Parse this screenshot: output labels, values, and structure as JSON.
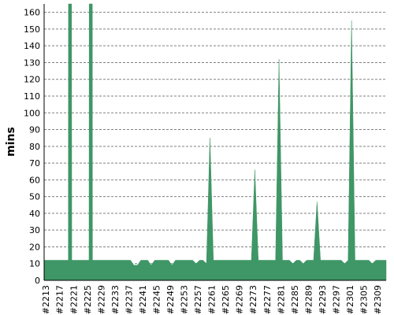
{
  "chart_data": {
    "type": "area",
    "title": "",
    "xlabel": "",
    "ylabel": "mins",
    "ylim": [
      0,
      165
    ],
    "yticks": [
      0,
      10,
      20,
      30,
      40,
      50,
      60,
      70,
      80,
      90,
      100,
      110,
      120,
      130,
      140,
      150,
      160
    ],
    "grid": true,
    "legend": "none",
    "color": "#3f9666",
    "x_labels": [
      "#2213",
      "#2217",
      "#2221",
      "#2225",
      "#2229",
      "#2233",
      "#2237",
      "#2241",
      "#2245",
      "#2249",
      "#2253",
      "#2257",
      "#2261",
      "#2265",
      "#2269",
      "#2273",
      "#2277",
      "#2281",
      "#2285",
      "#2289",
      "#2293",
      "#2297",
      "#2301",
      "#2305",
      "#2309"
    ],
    "x_start": 2213,
    "x_end": 2312,
    "points": [
      [
        2213,
        12
      ],
      [
        2214,
        12
      ],
      [
        2215,
        12
      ],
      [
        2216,
        12
      ],
      [
        2217,
        12
      ],
      [
        2218,
        12
      ],
      [
        2219,
        12
      ],
      [
        2220,
        12
      ],
      [
        2220.05,
        165
      ],
      [
        2220.95,
        165
      ],
      [
        2221,
        12
      ],
      [
        2222,
        12
      ],
      [
        2223,
        12
      ],
      [
        2224,
        12
      ],
      [
        2225,
        12
      ],
      [
        2226,
        12
      ],
      [
        2226.05,
        165
      ],
      [
        2226.95,
        165
      ],
      [
        2227,
        12
      ],
      [
        2228,
        12
      ],
      [
        2229,
        12
      ],
      [
        2230,
        12
      ],
      [
        2231,
        12
      ],
      [
        2232,
        12
      ],
      [
        2233,
        12
      ],
      [
        2234,
        12
      ],
      [
        2235,
        12
      ],
      [
        2236,
        12
      ],
      [
        2237,
        12
      ],
      [
        2238,
        12
      ],
      [
        2239,
        9
      ],
      [
        2240,
        9
      ],
      [
        2241,
        12
      ],
      [
        2242,
        12
      ],
      [
        2243,
        12
      ],
      [
        2244,
        9
      ],
      [
        2245,
        12
      ],
      [
        2246,
        12
      ],
      [
        2247,
        12
      ],
      [
        2248,
        12
      ],
      [
        2249,
        12
      ],
      [
        2250,
        9
      ],
      [
        2251,
        12
      ],
      [
        2252,
        12
      ],
      [
        2253,
        12
      ],
      [
        2254,
        12
      ],
      [
        2255,
        12
      ],
      [
        2256,
        12
      ],
      [
        2257,
        10
      ],
      [
        2258,
        12
      ],
      [
        2259,
        12
      ],
      [
        2260,
        10
      ],
      [
        2261,
        85
      ],
      [
        2262,
        12
      ],
      [
        2263,
        12
      ],
      [
        2264,
        12
      ],
      [
        2265,
        12
      ],
      [
        2266,
        12
      ],
      [
        2267,
        12
      ],
      [
        2268,
        12
      ],
      [
        2269,
        12
      ],
      [
        2270,
        12
      ],
      [
        2271,
        12
      ],
      [
        2272,
        12
      ],
      [
        2273,
        12
      ],
      [
        2274,
        66
      ],
      [
        2275,
        12
      ],
      [
        2276,
        12
      ],
      [
        2277,
        12
      ],
      [
        2278,
        12
      ],
      [
        2279,
        12
      ],
      [
        2280,
        12
      ],
      [
        2281,
        132
      ],
      [
        2282,
        12
      ],
      [
        2283,
        12
      ],
      [
        2284,
        12
      ],
      [
        2285,
        10
      ],
      [
        2286,
        12
      ],
      [
        2287,
        12
      ],
      [
        2288,
        10
      ],
      [
        2289,
        12
      ],
      [
        2290,
        12
      ],
      [
        2291,
        12
      ],
      [
        2292,
        47
      ],
      [
        2293,
        12
      ],
      [
        2294,
        12
      ],
      [
        2295,
        12
      ],
      [
        2296,
        12
      ],
      [
        2297,
        12
      ],
      [
        2298,
        12
      ],
      [
        2299,
        12
      ],
      [
        2300,
        10
      ],
      [
        2301,
        12
      ],
      [
        2302,
        155
      ],
      [
        2303,
        12
      ],
      [
        2304,
        12
      ],
      [
        2305,
        12
      ],
      [
        2306,
        12
      ],
      [
        2307,
        12
      ],
      [
        2308,
        10
      ],
      [
        2309,
        12
      ],
      [
        2310,
        12
      ],
      [
        2311,
        12
      ],
      [
        2312,
        12
      ]
    ]
  }
}
